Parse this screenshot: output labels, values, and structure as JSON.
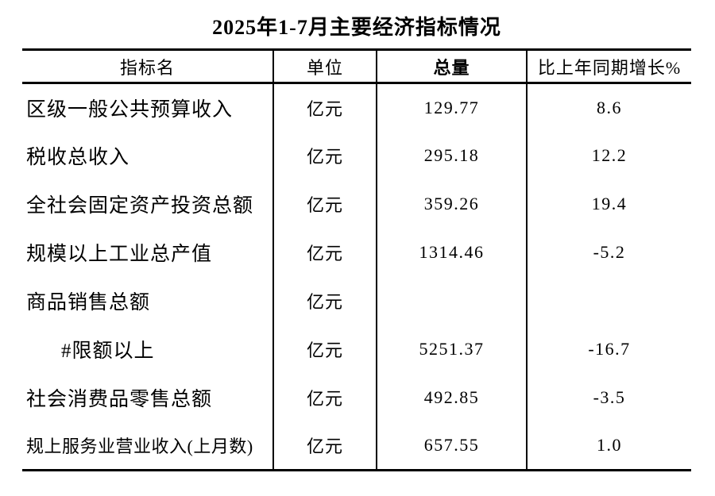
{
  "title": "2025年1-7月主要经济指标情况",
  "table": {
    "headers": {
      "indicator": "指标名",
      "unit": "单位",
      "total": "总量",
      "growth": "比上年同期增长%"
    },
    "rows": [
      {
        "name": "区级一般公共预算收入",
        "unit": "亿元",
        "total": "129.77",
        "growth": "8.6"
      },
      {
        "name": "税收总收入",
        "unit": "亿元",
        "total": "295.18",
        "growth": "12.2"
      },
      {
        "name": "全社会固定资产投资总额",
        "unit": "亿元",
        "total": "359.26",
        "growth": "19.4"
      },
      {
        "name": "规模以上工业总产值",
        "unit": "亿元",
        "total": "1314.46",
        "growth": "-5.2"
      },
      {
        "name": "商品销售总额",
        "unit": "亿元",
        "total": "",
        "growth": ""
      },
      {
        "name": "#限额以上",
        "unit": "亿元",
        "total": "5251.37",
        "growth": "-16.7"
      },
      {
        "name": "社会消费品零售总额",
        "unit": "亿元",
        "total": "492.85",
        "growth": "-3.5"
      },
      {
        "name": "规上服务业营业收入(上月数)",
        "unit": "亿元",
        "total": "657.55",
        "growth": "1.0"
      }
    ]
  }
}
